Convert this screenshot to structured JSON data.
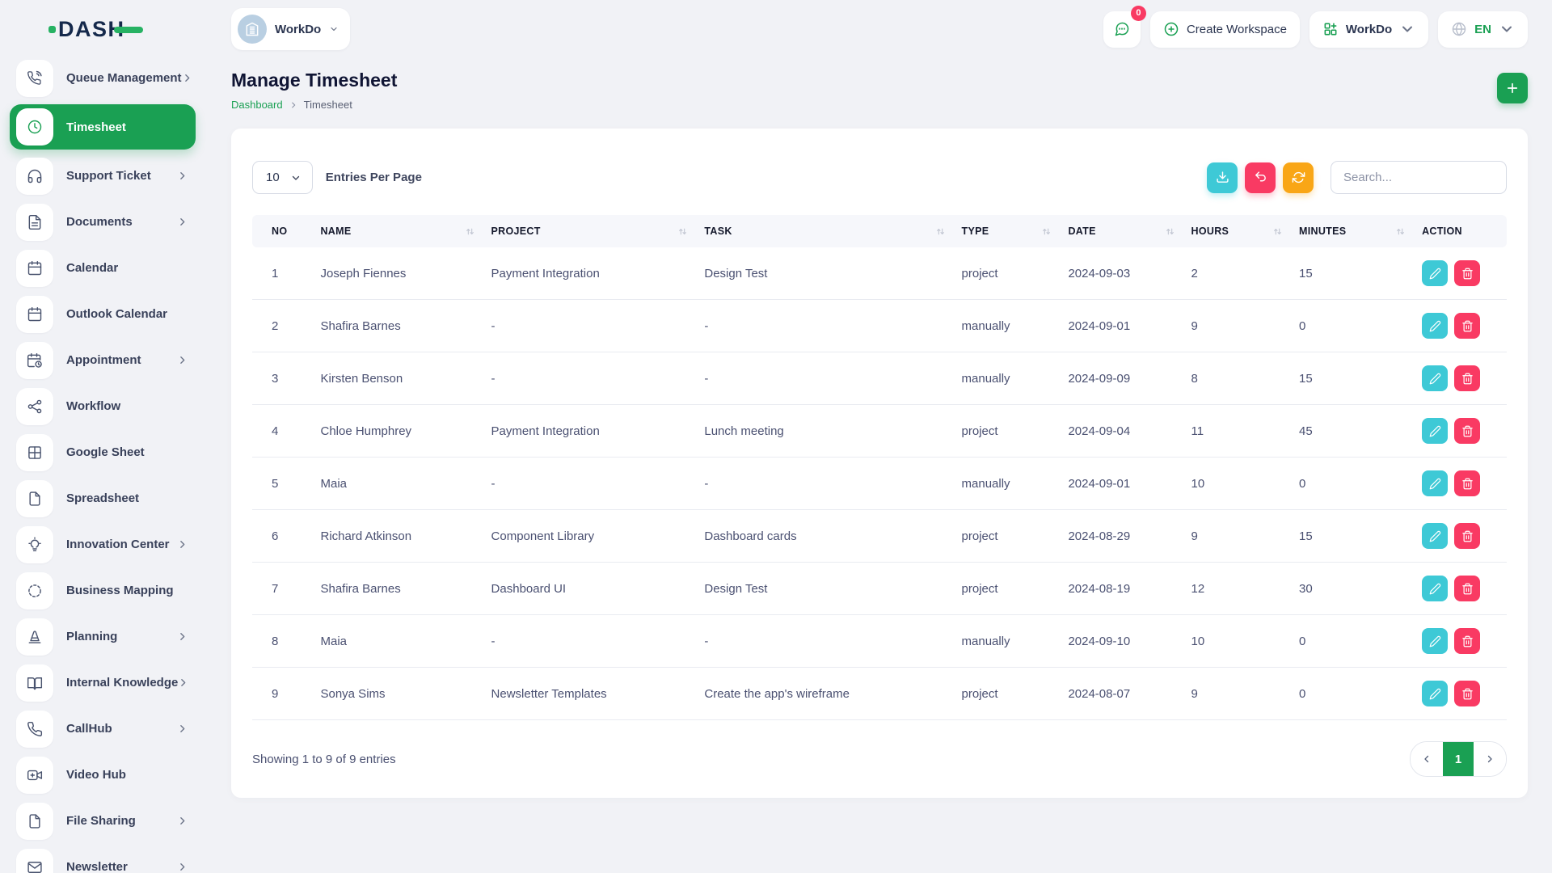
{
  "brand": {
    "logo_text": "DASH"
  },
  "topbar": {
    "workspace_selector": {
      "label": "WorkDo",
      "avatar_icon": "building-icon"
    },
    "messages": {
      "badge_count": "0",
      "icon": "chat-bubble-icon"
    },
    "create_workspace_label": "Create Workspace",
    "workdo_menu_label": "WorkDo",
    "language": {
      "code": "EN",
      "icon": "globe-icon"
    }
  },
  "sidebar": {
    "items": [
      {
        "label": "Queue Management",
        "icon": "phone-call-icon",
        "chevron": true,
        "active": false
      },
      {
        "label": "Timesheet",
        "icon": "clock-icon",
        "chevron": false,
        "active": true
      },
      {
        "label": "Support Ticket",
        "icon": "headphones-icon",
        "chevron": true,
        "active": false
      },
      {
        "label": "Documents",
        "icon": "document-icon",
        "chevron": true,
        "active": false
      },
      {
        "label": "Calendar",
        "icon": "calendar-icon",
        "chevron": false,
        "active": false
      },
      {
        "label": "Outlook Calendar",
        "icon": "calendar-icon",
        "chevron": false,
        "active": false
      },
      {
        "label": "Appointment",
        "icon": "calendar-clock-icon",
        "chevron": true,
        "active": false
      },
      {
        "label": "Workflow",
        "icon": "workflow-icon",
        "chevron": false,
        "active": false
      },
      {
        "label": "Google Sheet",
        "icon": "table-grid-icon",
        "chevron": false,
        "active": false
      },
      {
        "label": "Spreadsheet",
        "icon": "file-icon",
        "chevron": false,
        "active": false
      },
      {
        "label": "Innovation Center",
        "icon": "lightbulb-icon",
        "chevron": true,
        "active": false
      },
      {
        "label": "Business Mapping",
        "icon": "dashed-circle-icon",
        "chevron": false,
        "active": false
      },
      {
        "label": "Planning",
        "icon": "cone-icon",
        "chevron": true,
        "active": false
      },
      {
        "label": "Internal Knowledge",
        "icon": "book-icon",
        "chevron": true,
        "active": false
      },
      {
        "label": "CallHub",
        "icon": "phone-icon",
        "chevron": true,
        "active": false
      },
      {
        "label": "Video Hub",
        "icon": "video-icon",
        "chevron": false,
        "active": false
      },
      {
        "label": "File Sharing",
        "icon": "file-icon",
        "chevron": true,
        "active": false
      },
      {
        "label": "Newsletter",
        "icon": "mail-icon",
        "chevron": true,
        "active": false
      }
    ]
  },
  "page": {
    "title": "Manage Timesheet",
    "breadcrumb": {
      "root": "Dashboard",
      "current": "Timesheet"
    }
  },
  "controls": {
    "entries_per_page_value": "10",
    "entries_per_page_label": "Entries Per Page",
    "search_placeholder": "Search...",
    "toolbar_icons": [
      "download-icon",
      "undo-icon",
      "refresh-icon"
    ]
  },
  "table": {
    "columns": [
      {
        "label": "NO",
        "sortable": false
      },
      {
        "label": "NAME",
        "sortable": true
      },
      {
        "label": "PROJECT",
        "sortable": true
      },
      {
        "label": "TASK",
        "sortable": true
      },
      {
        "label": "TYPE",
        "sortable": true
      },
      {
        "label": "DATE",
        "sortable": true
      },
      {
        "label": "HOURS",
        "sortable": true
      },
      {
        "label": "MINUTES",
        "sortable": true
      },
      {
        "label": "ACTION",
        "sortable": false
      }
    ],
    "rows": [
      {
        "no": "1",
        "name": "Joseph Fiennes",
        "project": "Payment Integration",
        "task": "Design Test",
        "type": "project",
        "date": "2024-09-03",
        "hours": "2",
        "minutes": "15"
      },
      {
        "no": "2",
        "name": "Shafira Barnes",
        "project": "-",
        "task": "-",
        "type": "manually",
        "date": "2024-09-01",
        "hours": "9",
        "minutes": "0"
      },
      {
        "no": "3",
        "name": "Kirsten Benson",
        "project": "-",
        "task": "-",
        "type": "manually",
        "date": "2024-09-09",
        "hours": "8",
        "minutes": "15"
      },
      {
        "no": "4",
        "name": "Chloe Humphrey",
        "project": "Payment Integration",
        "task": "Lunch meeting",
        "type": "project",
        "date": "2024-09-04",
        "hours": "11",
        "minutes": "45"
      },
      {
        "no": "5",
        "name": "Maia",
        "project": "-",
        "task": "-",
        "type": "manually",
        "date": "2024-09-01",
        "hours": "10",
        "minutes": "0"
      },
      {
        "no": "6",
        "name": "Richard Atkinson",
        "project": "Component Library",
        "task": "Dashboard cards",
        "type": "project",
        "date": "2024-08-29",
        "hours": "9",
        "minutes": "15"
      },
      {
        "no": "7",
        "name": "Shafira Barnes",
        "project": "Dashboard UI",
        "task": "Design Test",
        "type": "project",
        "date": "2024-08-19",
        "hours": "12",
        "minutes": "30"
      },
      {
        "no": "8",
        "name": "Maia",
        "project": "-",
        "task": "-",
        "type": "manually",
        "date": "2024-09-10",
        "hours": "10",
        "minutes": "0"
      },
      {
        "no": "9",
        "name": "Sonya Sims",
        "project": "Newsletter Templates",
        "task": "Create the app's wireframe",
        "type": "project",
        "date": "2024-08-07",
        "hours": "9",
        "minutes": "0"
      }
    ],
    "row_actions": [
      {
        "name": "edit",
        "icon": "pencil-icon"
      },
      {
        "name": "delete",
        "icon": "trash-icon"
      }
    ]
  },
  "footer": {
    "showing_text": "Showing 1 to 9 of 9 entries",
    "pagination": {
      "current_page": "1"
    }
  },
  "colors": {
    "green": "#1aa053",
    "cyan": "#3ec9d6",
    "pink": "#f93a63",
    "orange": "#f9a616",
    "navy": "#15294b"
  }
}
